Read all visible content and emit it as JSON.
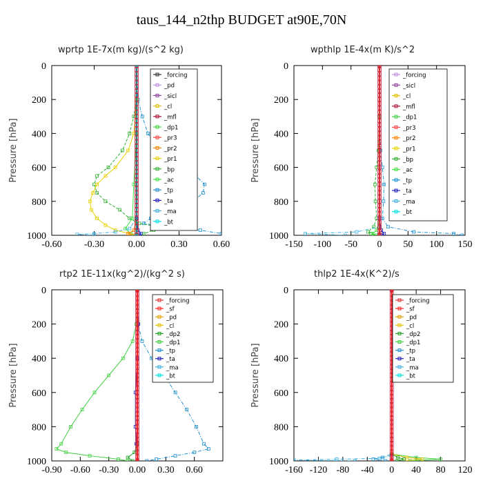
{
  "title": "taus_144_n2thp  BUDGET at90E,70N",
  "colors": {
    "_forcing": "#e03030",
    "_pd": "#e0a000",
    "_sicl": "#9040a0",
    "_cl": "#e0c000",
    "_mfl": "#b01030",
    "_dp1": "#40d040",
    "_dp2": "#20a020",
    "_pr3": "#ff4040",
    "_pr2": "#ff8000",
    "_pr1": "#e8d000",
    "_bp": "#30b030",
    "_ac": "#40e040",
    "_tp": "#2090d0",
    "_ta": "#2020c0",
    "_ma": "#40b0e0",
    "_bt": "#00e0e0",
    "_sf": "#ff2020",
    "wprtp_forcing": "#303030",
    "wprtp_pd": "#c090e0",
    "wpthlp_forcing": "#c090e0"
  },
  "chart_data": [
    {
      "type": "line",
      "title": "wprtp  1E-7x(m kg)/(s^2 kg)",
      "ylabel": "Pressure [hPa]",
      "xlim": [
        -0.6,
        0.6
      ],
      "ylim": [
        1000,
        0
      ],
      "xticks": [
        "-0.60",
        "-0.30",
        "0.00",
        "0.30",
        "0.60"
      ],
      "yticks": [
        "0",
        "200",
        "400",
        "600",
        "800",
        "1000"
      ],
      "legend": [
        "_forcing",
        "_pd",
        "_sicl",
        "_cl",
        "_mfl",
        "_dp1",
        "_pr3",
        "_pr2",
        "_pr1",
        "_bp",
        "_ac",
        "_tp",
        "_ta",
        "_ma",
        "_bt"
      ],
      "series": [
        {
          "name": "_tp",
          "y": [
            0,
            200,
            300,
            400,
            500,
            600,
            650,
            700,
            750,
            800,
            850,
            900,
            930,
            950,
            970,
            990,
            1000
          ],
          "x": [
            0.0,
            0.01,
            0.04,
            0.08,
            0.15,
            0.3,
            0.42,
            0.48,
            0.47,
            0.4,
            0.28,
            0.1,
            0.05,
            0.2,
            0.45,
            0.6,
            0.62
          ]
        },
        {
          "name": "_bp",
          "y": [
            0,
            200,
            300,
            400,
            500,
            600,
            650,
            700,
            750,
            800,
            850,
            900,
            930,
            950,
            970,
            990,
            1000
          ],
          "x": [
            0.0,
            0.0,
            -0.02,
            -0.05,
            -0.1,
            -0.2,
            -0.28,
            -0.3,
            -0.28,
            -0.22,
            -0.12,
            -0.05,
            0.02,
            0.15,
            0.12,
            0.05,
            0.02
          ]
        },
        {
          "name": "_pr1",
          "y": [
            0,
            200,
            400,
            500,
            600,
            650,
            700,
            750,
            800,
            850,
            900,
            940,
            970,
            990,
            1000
          ],
          "x": [
            0.0,
            0.0,
            -0.02,
            -0.06,
            -0.15,
            -0.22,
            -0.28,
            -0.31,
            -0.33,
            -0.32,
            -0.28,
            -0.22,
            -0.15,
            -0.05,
            -0.02
          ]
        },
        {
          "name": "_ac",
          "y": [
            0,
            400,
            700,
            900,
            960,
            990,
            1000
          ],
          "x": [
            0.0,
            0.0,
            -0.02,
            -0.03,
            -0.08,
            -0.04,
            -0.02
          ]
        },
        {
          "name": "_ma",
          "y": [
            0,
            900,
            960,
            980,
            990,
            995,
            1000
          ],
          "x": [
            0.0,
            0.0,
            -0.05,
            -0.15,
            -0.3,
            -0.42,
            -0.3
          ]
        },
        {
          "name": "_pr2",
          "y": [
            0,
            900,
            970,
            990,
            1000
          ],
          "x": [
            0.0,
            0.0,
            -0.02,
            -0.06,
            -0.03
          ]
        },
        {
          "name": "_ta",
          "y": [
            0,
            900,
            970,
            990,
            1000
          ],
          "x": [
            0.0,
            0.0,
            0.01,
            0.03,
            0.02
          ]
        },
        {
          "name": "_pr3",
          "y": [
            0,
            1000
          ],
          "x": [
            0.0,
            0.0
          ]
        },
        {
          "name": "_forcing",
          "y": [
            0,
            1000
          ],
          "x": [
            0.0,
            0.0
          ]
        },
        {
          "name": "_bt",
          "y": [
            0,
            1000
          ],
          "x": [
            0.0,
            0.0
          ]
        }
      ]
    },
    {
      "type": "line",
      "title": "wpthlp  1E-4x(m K)/s^2",
      "ylabel": "Pressure [hPa]",
      "xlim": [
        -150,
        150
      ],
      "ylim": [
        1000,
        0
      ],
      "xticks": [
        "-150",
        "-100",
        "-50",
        "0",
        "50",
        "100",
        "150"
      ],
      "yticks": [
        "0",
        "200",
        "400",
        "600",
        "800",
        "1000"
      ],
      "legend": [
        "_forcing",
        "_sicl",
        "_cl",
        "_mfl",
        "_dp1",
        "_pr3",
        "_pr2",
        "_pr1",
        "_bp",
        "_ac",
        "_tp",
        "_ta",
        "_ma",
        "_bt"
      ],
      "series": [
        {
          "name": "_tp",
          "y": [
            0,
            300,
            500,
            600,
            700,
            800,
            900,
            950,
            980,
            990,
            1000
          ],
          "x": [
            0,
            0,
            2,
            5,
            8,
            7,
            5,
            15,
            60,
            130,
            145
          ]
        },
        {
          "name": "_bp",
          "y": [
            0,
            300,
            500,
            600,
            700,
            800,
            900,
            950,
            980,
            990,
            1000
          ],
          "x": [
            0,
            0,
            -2,
            -5,
            -8,
            -7,
            -5,
            -10,
            -20,
            -15,
            -5
          ]
        },
        {
          "name": "_ma",
          "y": [
            0,
            950,
            980,
            990,
            1000
          ],
          "x": [
            0,
            0,
            -40,
            -130,
            -60
          ]
        },
        {
          "name": "_ac",
          "y": [
            0,
            900,
            970,
            990,
            1000
          ],
          "x": [
            0,
            0,
            -5,
            -12,
            -5
          ]
        },
        {
          "name": "_ta",
          "y": [
            0,
            900,
            970,
            990,
            1000
          ],
          "x": [
            0,
            0,
            3,
            8,
            4
          ]
        },
        {
          "name": "_pr3",
          "y": [
            0,
            1000
          ],
          "x": [
            0,
            0
          ]
        },
        {
          "name": "_forcing",
          "y": [
            0,
            1000
          ],
          "x": [
            0,
            0
          ]
        }
      ]
    },
    {
      "type": "line",
      "title": "rtp2  1E-11x(kg^2)/(kg^2 s)",
      "ylabel": "Pressure [hPa]",
      "xlim": [
        -0.9,
        0.9
      ],
      "ylim": [
        1000,
        0
      ],
      "xticks": [
        "-0.90",
        "-0.60",
        "-0.30",
        "0.00",
        "0.30",
        "0.60"
      ],
      "yticks": [
        "0",
        "200",
        "400",
        "600",
        "800",
        "1000"
      ],
      "legend": [
        "_forcing",
        "_sf",
        "_pd",
        "_cl",
        "_dp2",
        "_dp1",
        "_tp",
        "_ta",
        "_ma",
        "_bt"
      ],
      "series": [
        {
          "name": "_tp",
          "y": [
            0,
            200,
            300,
            400,
            500,
            600,
            700,
            800,
            900,
            930,
            950,
            970,
            990,
            1000
          ],
          "x": [
            0.0,
            0.01,
            0.05,
            0.15,
            0.28,
            0.4,
            0.52,
            0.62,
            0.7,
            0.75,
            0.6,
            0.4,
            0.2,
            0.1
          ]
        },
        {
          "name": "_dp1",
          "y": [
            0,
            200,
            300,
            400,
            500,
            600,
            700,
            800,
            900,
            930,
            950,
            970,
            990,
            1000
          ],
          "x": [
            0.0,
            -0.01,
            -0.05,
            -0.15,
            -0.3,
            -0.45,
            -0.58,
            -0.7,
            -0.8,
            -0.85,
            -0.75,
            -0.5,
            -0.2,
            -0.1
          ]
        },
        {
          "name": "_dp2",
          "y": [
            0,
            900,
            950,
            980,
            1000
          ],
          "x": [
            0.0,
            0.0,
            -0.03,
            -0.1,
            -0.05
          ]
        },
        {
          "name": "_ta",
          "y": [
            0,
            200,
            400,
            600,
            800,
            900,
            1000
          ],
          "x": [
            0.0,
            0.01,
            0.0,
            -0.02,
            -0.02,
            -0.01,
            0.0
          ]
        },
        {
          "name": "_forcing",
          "y": [
            0,
            1000
          ],
          "x": [
            0.0,
            0.0
          ]
        },
        {
          "name": "_sf",
          "y": [
            0,
            1000
          ],
          "x": [
            0.0,
            0.0
          ]
        }
      ]
    },
    {
      "type": "line",
      "title": "thlp2  1E-4x(K^2)/s",
      "ylabel": "Pressure [hPa]",
      "xlim": [
        -160,
        120
      ],
      "ylim": [
        1000,
        0
      ],
      "xticks": [
        "-160",
        "-120",
        "-80",
        "-40",
        "0",
        "40",
        "80",
        "120"
      ],
      "yticks": [
        "0",
        "200",
        "400",
        "600",
        "800",
        "1000"
      ],
      "legend": [
        "_forcing",
        "_sf",
        "_pd",
        "_cl",
        "_dp2",
        "_dp1",
        "_tp",
        "_ta",
        "_ma",
        "_bt"
      ],
      "series": [
        {
          "name": "_ma",
          "y": [
            0,
            970,
            985,
            990,
            995,
            1000
          ],
          "x": [
            0,
            0,
            -20,
            -90,
            -160,
            -60
          ]
        },
        {
          "name": "_dp1",
          "y": [
            0,
            960,
            980,
            990,
            1000
          ],
          "x": [
            0,
            0,
            40,
            80,
            30
          ]
        },
        {
          "name": "_cl",
          "y": [
            0,
            960,
            980,
            990,
            1000
          ],
          "x": [
            0,
            0,
            25,
            50,
            20
          ]
        },
        {
          "name": "_tp",
          "y": [
            0,
            960,
            980,
            990,
            1000
          ],
          "x": [
            0,
            0,
            -15,
            -30,
            -10
          ]
        },
        {
          "name": "_dp2",
          "y": [
            0,
            960,
            980,
            990,
            1000
          ],
          "x": [
            0,
            0,
            10,
            20,
            8
          ]
        },
        {
          "name": "_forcing",
          "y": [
            0,
            1000
          ],
          "x": [
            0,
            0
          ]
        },
        {
          "name": "_sf",
          "y": [
            0,
            1000
          ],
          "x": [
            0,
            0
          ]
        }
      ]
    }
  ]
}
